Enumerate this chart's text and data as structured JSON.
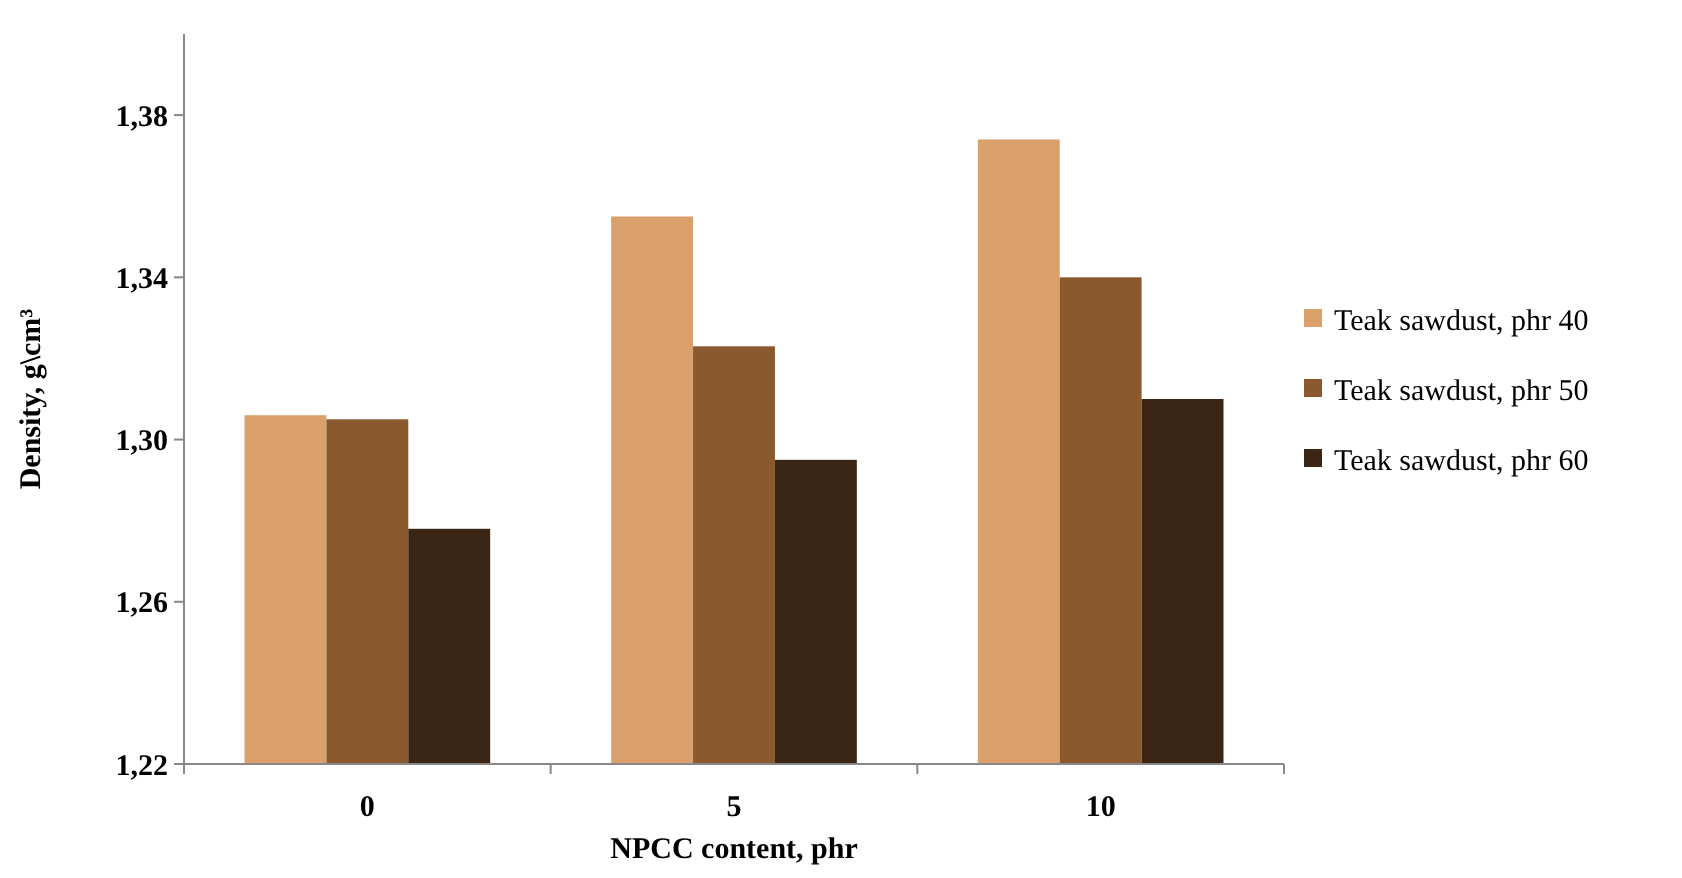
{
  "chart_data": {
    "type": "bar",
    "xlabel": "NPCC content, phr",
    "ylabel": "Density, g\\cm³",
    "categories": [
      "0",
      "5",
      "10"
    ],
    "series": [
      {
        "name": "Teak sawdust, phr 40",
        "color": "#d9a06b",
        "values": [
          1.306,
          1.355,
          1.374
        ]
      },
      {
        "name": "Teak sawdust, phr 50",
        "color": "#8a5a2e",
        "values": [
          1.305,
          1.323,
          1.34
        ]
      },
      {
        "name": "Teak sawdust, phr 60",
        "color": "#3b2616",
        "values": [
          1.278,
          1.295,
          1.31
        ]
      }
    ],
    "ylim": [
      1.22,
      1.4
    ],
    "yticks": [
      {
        "value": 1.22,
        "label": "1,22"
      },
      {
        "value": 1.26,
        "label": "1,26"
      },
      {
        "value": 1.3,
        "label": "1,30"
      },
      {
        "value": 1.34,
        "label": "1,34"
      },
      {
        "value": 1.38,
        "label": "1,38"
      }
    ],
    "grid": false,
    "legend": "right"
  }
}
